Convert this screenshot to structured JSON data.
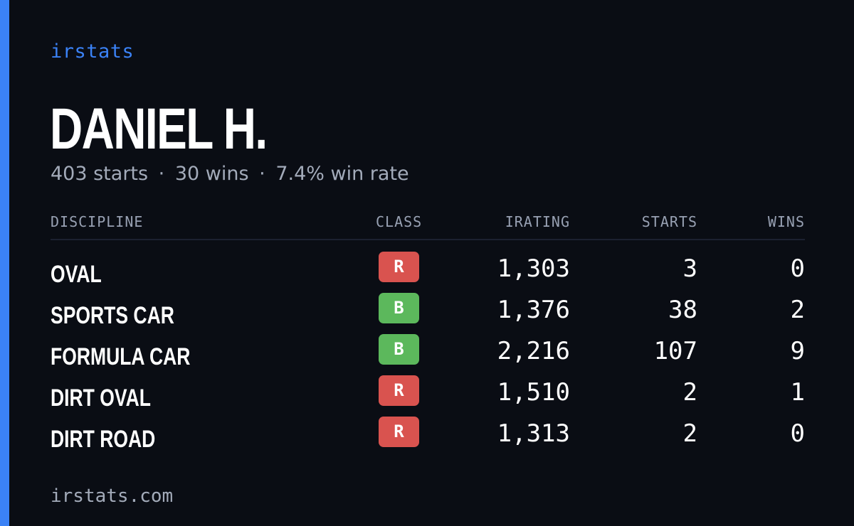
{
  "theme": {
    "accent": "#3b82f6",
    "background": "#0a0d14",
    "class_colors": {
      "R": "#d9534f",
      "B": "#5cb85c"
    }
  },
  "brand": {
    "name": "irstats"
  },
  "player": {
    "name": "DANIEL H.",
    "starts": "403 starts",
    "wins": "30 wins",
    "win_rate": "7.4% win rate",
    "separator": "·"
  },
  "table": {
    "headers": {
      "discipline": "DISCIPLINE",
      "class": "CLASS",
      "irating": "IRATING",
      "starts": "STARTS",
      "wins": "WINS"
    },
    "rows": [
      {
        "discipline": "OVAL",
        "class": "R",
        "irating": "1,303",
        "starts": "3",
        "wins": "0"
      },
      {
        "discipline": "SPORTS CAR",
        "class": "B",
        "irating": "1,376",
        "starts": "38",
        "wins": "2"
      },
      {
        "discipline": "FORMULA CAR",
        "class": "B",
        "irating": "2,216",
        "starts": "107",
        "wins": "9"
      },
      {
        "discipline": "DIRT OVAL",
        "class": "R",
        "irating": "1,510",
        "starts": "2",
        "wins": "1"
      },
      {
        "discipline": "DIRT ROAD",
        "class": "R",
        "irating": "1,313",
        "starts": "2",
        "wins": "0"
      }
    ]
  },
  "footer": {
    "site": "irstats.com"
  }
}
